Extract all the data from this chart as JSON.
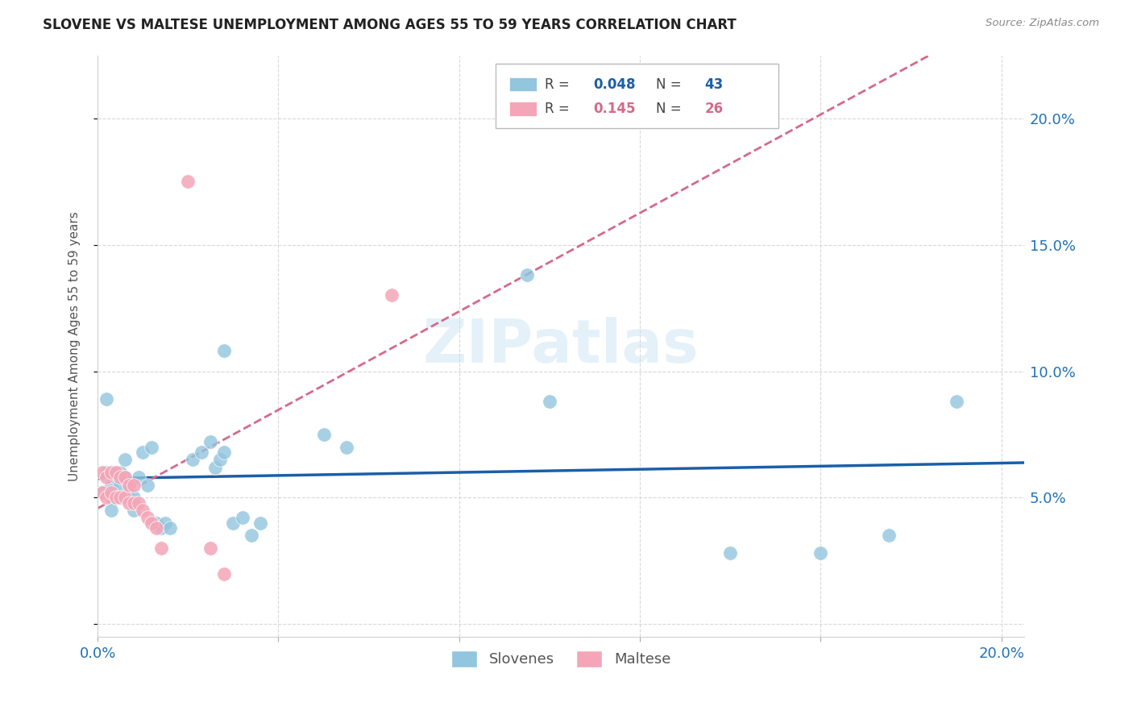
{
  "title": "SLOVENE VS MALTESE UNEMPLOYMENT AMONG AGES 55 TO 59 YEARS CORRELATION CHART",
  "source": "Source: ZipAtlas.com",
  "ylabel": "Unemployment Among Ages 55 to 59 years",
  "xlim": [
    0.0,
    0.205
  ],
  "ylim": [
    -0.005,
    0.225
  ],
  "xtick_positions": [
    0.0,
    0.04,
    0.08,
    0.12,
    0.16,
    0.2
  ],
  "xtick_labels": [
    "0.0%",
    "",
    "",
    "",
    "",
    "20.0%"
  ],
  "ytick_positions": [
    0.0,
    0.05,
    0.1,
    0.15,
    0.2
  ],
  "ytick_labels": [
    "",
    "5.0%",
    "10.0%",
    "15.0%",
    "20.0%"
  ],
  "color_slovene": "#92c5de",
  "color_maltese": "#f4a6b8",
  "trendline_slovene_color": "#1a5fa8",
  "trendline_maltese_color": "#d46a8a",
  "R1": "0.048",
  "N1": "43",
  "R2": "0.145",
  "N2": "26",
  "legend_label1": "Slovenes",
  "legend_label2": "Maltese",
  "watermark": "ZIPatlas",
  "slovene_x": [
    0.001,
    0.002,
    0.002,
    0.003,
    0.003,
    0.003,
    0.004,
    0.004,
    0.005,
    0.005,
    0.006,
    0.006,
    0.007,
    0.007,
    0.008,
    0.008,
    0.009,
    0.01,
    0.011,
    0.012,
    0.013,
    0.014,
    0.015,
    0.016,
    0.021,
    0.023,
    0.025,
    0.026,
    0.027,
    0.028,
    0.03,
    0.032,
    0.034,
    0.036,
    0.05,
    0.055,
    0.095,
    0.1,
    0.14,
    0.16,
    0.175,
    0.19,
    0.028
  ],
  "slovene_y": [
    0.052,
    0.06,
    0.089,
    0.055,
    0.05,
    0.045,
    0.058,
    0.05,
    0.06,
    0.055,
    0.065,
    0.058,
    0.055,
    0.05,
    0.05,
    0.045,
    0.058,
    0.068,
    0.055,
    0.07,
    0.04,
    0.038,
    0.04,
    0.038,
    0.065,
    0.068,
    0.072,
    0.062,
    0.065,
    0.068,
    0.04,
    0.042,
    0.035,
    0.04,
    0.075,
    0.07,
    0.138,
    0.088,
    0.028,
    0.028,
    0.035,
    0.088,
    0.108
  ],
  "maltese_x": [
    0.001,
    0.001,
    0.002,
    0.002,
    0.003,
    0.003,
    0.004,
    0.004,
    0.005,
    0.005,
    0.006,
    0.006,
    0.007,
    0.007,
    0.008,
    0.008,
    0.009,
    0.01,
    0.011,
    0.012,
    0.013,
    0.014,
    0.02,
    0.025,
    0.028,
    0.065
  ],
  "maltese_y": [
    0.06,
    0.052,
    0.058,
    0.05,
    0.06,
    0.052,
    0.06,
    0.05,
    0.058,
    0.05,
    0.058,
    0.05,
    0.055,
    0.048,
    0.055,
    0.048,
    0.048,
    0.045,
    0.042,
    0.04,
    0.038,
    0.03,
    0.175,
    0.03,
    0.02,
    0.13
  ]
}
